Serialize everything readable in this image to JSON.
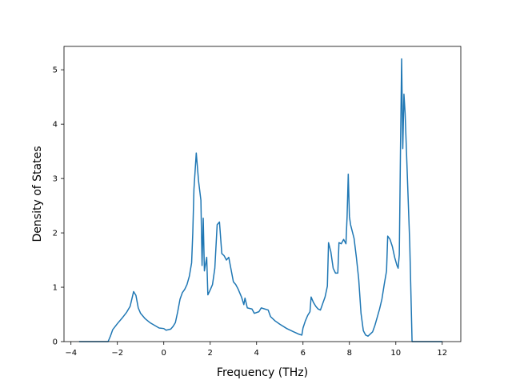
{
  "chart_data": {
    "type": "line",
    "title": "",
    "xlabel": "Frequency (THz)",
    "ylabel": "Density of States",
    "xlim": [
      -4.3,
      12.8
    ],
    "ylim": [
      0,
      5.43
    ],
    "xticks": [
      -4,
      -2,
      0,
      2,
      4,
      6,
      8,
      10,
      12
    ],
    "xtick_labels": [
      "−4",
      "−2",
      "0",
      "2",
      "4",
      "6",
      "8",
      "10",
      "12"
    ],
    "yticks": [
      0,
      1,
      2,
      3,
      4,
      5
    ],
    "ytick_labels": [
      "0",
      "1",
      "2",
      "3",
      "4",
      "5"
    ],
    "grid": false,
    "legend": "none",
    "line_color": "#1f77b4",
    "series": [
      {
        "name": "",
        "points": [
          [
            -3.65,
            0
          ],
          [
            -2.4,
            0
          ],
          [
            -2.3,
            0.1
          ],
          [
            -2.2,
            0.22
          ],
          [
            -2.0,
            0.33
          ],
          [
            -1.8,
            0.43
          ],
          [
            -1.6,
            0.54
          ],
          [
            -1.45,
            0.65
          ],
          [
            -1.3,
            0.92
          ],
          [
            -1.2,
            0.85
          ],
          [
            -1.1,
            0.62
          ],
          [
            -1.0,
            0.52
          ],
          [
            -0.8,
            0.42
          ],
          [
            -0.6,
            0.35
          ],
          [
            -0.4,
            0.3
          ],
          [
            -0.2,
            0.25
          ],
          [
            0.0,
            0.24
          ],
          [
            0.1,
            0.21
          ],
          [
            0.3,
            0.23
          ],
          [
            0.4,
            0.28
          ],
          [
            0.5,
            0.35
          ],
          [
            0.6,
            0.55
          ],
          [
            0.7,
            0.78
          ],
          [
            0.8,
            0.9
          ],
          [
            0.9,
            0.96
          ],
          [
            1.0,
            1.05
          ],
          [
            1.1,
            1.2
          ],
          [
            1.2,
            1.45
          ],
          [
            1.25,
            2.0
          ],
          [
            1.3,
            2.8
          ],
          [
            1.4,
            3.47
          ],
          [
            1.5,
            2.95
          ],
          [
            1.6,
            2.6
          ],
          [
            1.65,
            1.4
          ],
          [
            1.7,
            2.27
          ],
          [
            1.75,
            1.3
          ],
          [
            1.85,
            1.55
          ],
          [
            1.9,
            0.86
          ],
          [
            2.0,
            0.95
          ],
          [
            2.1,
            1.05
          ],
          [
            2.2,
            1.35
          ],
          [
            2.3,
            2.15
          ],
          [
            2.4,
            2.2
          ],
          [
            2.5,
            1.62
          ],
          [
            2.6,
            1.58
          ],
          [
            2.7,
            1.5
          ],
          [
            2.8,
            1.55
          ],
          [
            3.0,
            1.1
          ],
          [
            3.1,
            1.05
          ],
          [
            3.2,
            0.97
          ],
          [
            3.35,
            0.82
          ],
          [
            3.45,
            0.68
          ],
          [
            3.5,
            0.8
          ],
          [
            3.6,
            0.62
          ],
          [
            3.8,
            0.6
          ],
          [
            3.9,
            0.52
          ],
          [
            4.1,
            0.55
          ],
          [
            4.2,
            0.62
          ],
          [
            4.5,
            0.58
          ],
          [
            4.6,
            0.46
          ],
          [
            4.8,
            0.38
          ],
          [
            5.0,
            0.32
          ],
          [
            5.3,
            0.24
          ],
          [
            5.6,
            0.18
          ],
          [
            5.8,
            0.14
          ],
          [
            5.95,
            0.12
          ],
          [
            6.0,
            0.25
          ],
          [
            6.1,
            0.38
          ],
          [
            6.2,
            0.48
          ],
          [
            6.3,
            0.55
          ],
          [
            6.35,
            0.82
          ],
          [
            6.45,
            0.72
          ],
          [
            6.55,
            0.65
          ],
          [
            6.65,
            0.6
          ],
          [
            6.75,
            0.58
          ],
          [
            6.85,
            0.7
          ],
          [
            6.95,
            0.82
          ],
          [
            7.05,
            1.02
          ],
          [
            7.1,
            1.82
          ],
          [
            7.2,
            1.65
          ],
          [
            7.3,
            1.35
          ],
          [
            7.4,
            1.26
          ],
          [
            7.5,
            1.26
          ],
          [
            7.55,
            1.82
          ],
          [
            7.65,
            1.8
          ],
          [
            7.75,
            1.88
          ],
          [
            7.85,
            1.8
          ],
          [
            7.9,
            2.3
          ],
          [
            7.95,
            3.08
          ],
          [
            8.0,
            2.3
          ],
          [
            8.05,
            2.15
          ],
          [
            8.2,
            1.9
          ],
          [
            8.3,
            1.55
          ],
          [
            8.4,
            1.15
          ],
          [
            8.5,
            0.52
          ],
          [
            8.6,
            0.2
          ],
          [
            8.7,
            0.12
          ],
          [
            8.8,
            0.1
          ],
          [
            9.0,
            0.18
          ],
          [
            9.1,
            0.3
          ],
          [
            9.2,
            0.45
          ],
          [
            9.3,
            0.6
          ],
          [
            9.4,
            0.78
          ],
          [
            9.5,
            1.05
          ],
          [
            9.6,
            1.3
          ],
          [
            9.65,
            1.94
          ],
          [
            9.75,
            1.88
          ],
          [
            9.85,
            1.75
          ],
          [
            9.95,
            1.55
          ],
          [
            10.05,
            1.4
          ],
          [
            10.1,
            1.35
          ],
          [
            10.15,
            1.6
          ],
          [
            10.2,
            3.5
          ],
          [
            10.25,
            5.2
          ],
          [
            10.3,
            3.55
          ],
          [
            10.35,
            4.55
          ],
          [
            10.4,
            4.2
          ],
          [
            10.5,
            3.0
          ],
          [
            10.6,
            1.8
          ],
          [
            10.7,
            0
          ],
          [
            12.0,
            0
          ]
        ]
      }
    ]
  }
}
